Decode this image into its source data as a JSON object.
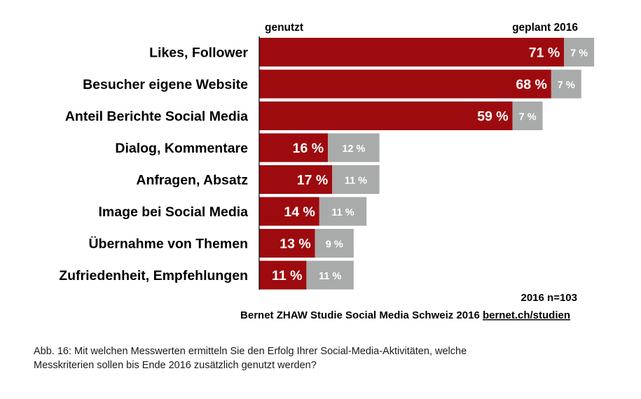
{
  "chart_data": {
    "type": "bar",
    "stacked": true,
    "orientation": "horizontal",
    "categories": [
      "Likes, Follower",
      "Besucher eigene Website",
      "Anteil Berichte Social Media",
      "Dialog, Kommentare",
      "Anfragen, Absatz",
      "Image bei Social Media",
      "Übernahme von Themen",
      "Zufriedenheit, Empfehlungen"
    ],
    "series": [
      {
        "name": "genutzt",
        "values": [
          71,
          68,
          59,
          16,
          17,
          14,
          13,
          11
        ],
        "labels": [
          "71 %",
          "68 %",
          "59 %",
          "16 %",
          "17 %",
          "14 %",
          "13 %",
          "11 %"
        ]
      },
      {
        "name": "geplant 2016",
        "values": [
          7,
          7,
          7,
          12,
          11,
          11,
          9,
          11
        ],
        "labels": [
          "7 %",
          "7 %",
          "7 %",
          "12 %",
          "11 %",
          "11 %",
          "9 %",
          "11 %"
        ]
      }
    ],
    "xlim": [
      0,
      78
    ],
    "grid": false,
    "legend": "top"
  },
  "notes": {
    "sample": "2016 n=103",
    "source_text": "Bernet ZHAW Studie Social Media Schweiz 2016 ",
    "source_link": "bernet.ch/studien"
  },
  "caption": {
    "line1": "Abb. 16: Mit welchen Messwerten ermitteln Sie den Erfolg Ihrer Social-Media-Aktivitäten, welche",
    "line2": "Messkriterien sollen bis Ende 2016 zusätzlich genutzt werden?"
  },
  "colors": {
    "used": "#9e0b0f",
    "planned": "#a9aaaa",
    "text": "#000000",
    "axis": "#000000"
  }
}
